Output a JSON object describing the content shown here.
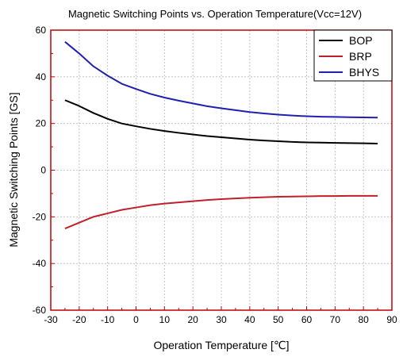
{
  "chart_data": {
    "type": "line",
    "title": "Magnetic Switching Points vs. Operation Temperature(Vcc=12V)",
    "xlabel": "Operation Temperature [℃]",
    "ylabel": "Magnetic Switching Points [GS]",
    "xlim": [
      -30,
      90
    ],
    "ylim": [
      -60,
      60
    ],
    "xticks": [
      -30,
      -20,
      -10,
      0,
      10,
      20,
      30,
      40,
      50,
      60,
      70,
      80,
      90
    ],
    "yticks": [
      -60,
      -40,
      -20,
      0,
      20,
      40,
      60
    ],
    "grid": true,
    "legend_position": "top-right",
    "x": [
      -25,
      -20,
      -15,
      -10,
      -5,
      0,
      5,
      10,
      15,
      20,
      25,
      30,
      35,
      40,
      45,
      50,
      55,
      60,
      65,
      70,
      75,
      80,
      85
    ],
    "series": [
      {
        "name": "BOP",
        "color": "#000000",
        "values": [
          30,
          27.5,
          24.5,
          22,
          20,
          18.8,
          17.7,
          16.8,
          16,
          15.3,
          14.6,
          14.1,
          13.6,
          13.1,
          12.7,
          12.4,
          12.1,
          11.9,
          11.8,
          11.7,
          11.6,
          11.5,
          11.4
        ]
      },
      {
        "name": "BRP",
        "color": "#c0202a",
        "values": [
          -25,
          -22.5,
          -20,
          -18.5,
          -17,
          -16,
          -15,
          -14.3,
          -13.8,
          -13.3,
          -12.8,
          -12.4,
          -12.1,
          -11.8,
          -11.6,
          -11.4,
          -11.3,
          -11.2,
          -11.1,
          -11.1,
          -11.0,
          -11.0,
          -11.0
        ]
      },
      {
        "name": "BHYS",
        "color": "#2020b0",
        "values": [
          55,
          50,
          44.5,
          40.5,
          37,
          34.8,
          32.7,
          31.1,
          29.8,
          28.6,
          27.4,
          26.5,
          25.7,
          24.9,
          24.3,
          23.8,
          23.4,
          23.1,
          22.9,
          22.8,
          22.7,
          22.6,
          22.5
        ]
      }
    ]
  }
}
